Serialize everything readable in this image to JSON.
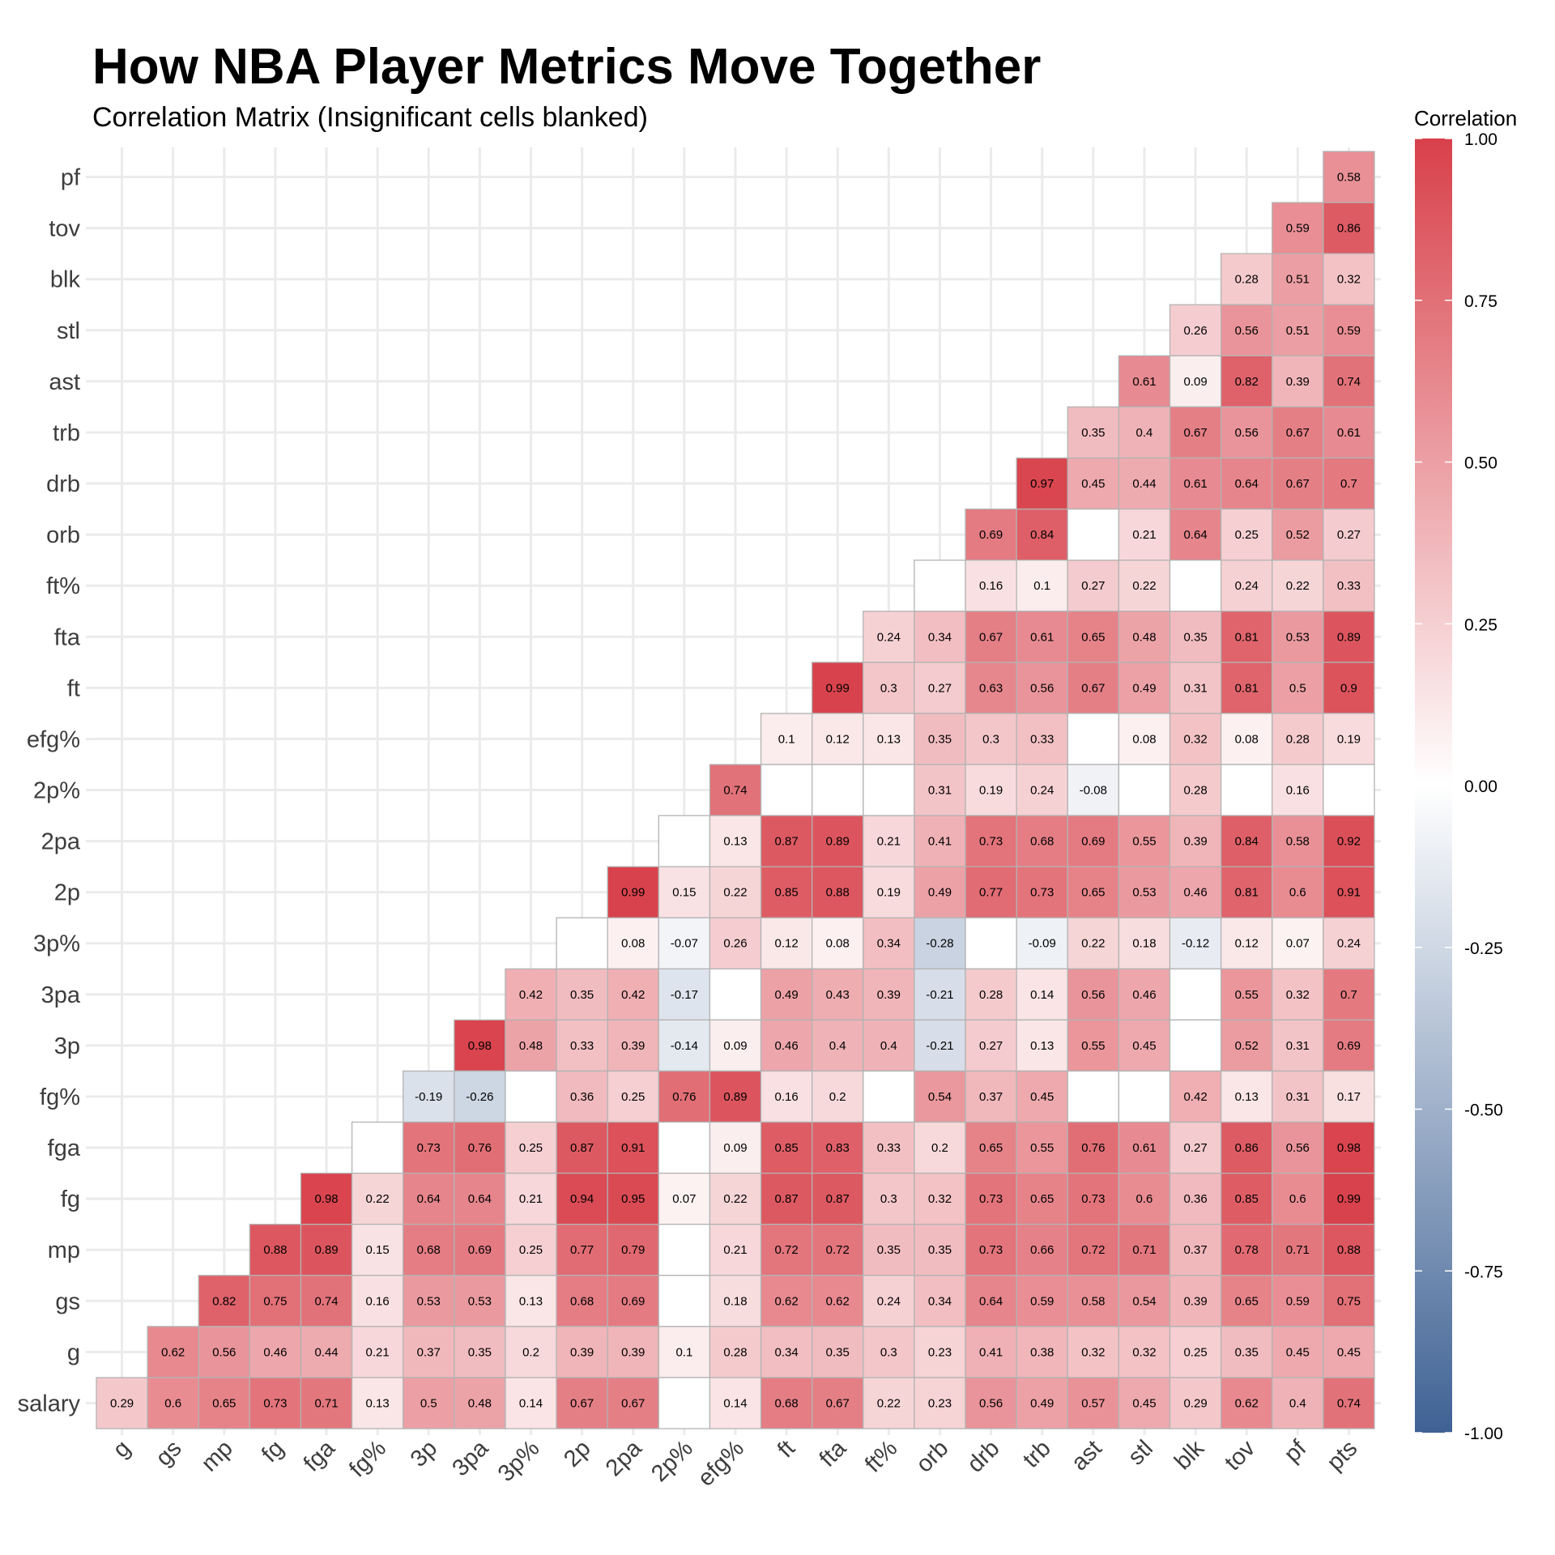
{
  "chart_data": {
    "type": "heatmap",
    "title": "How NBA Player Metrics Move Together",
    "subtitle": "Correlation Matrix (Insignificant cells blanked)",
    "x_categories": [
      "g",
      "gs",
      "mp",
      "fg",
      "fga",
      "fg%",
      "3p",
      "3pa",
      "3p%",
      "2p",
      "2pa",
      "2p%",
      "efg%",
      "ft",
      "fta",
      "ft%",
      "orb",
      "drb",
      "trb",
      "ast",
      "stl",
      "blk",
      "tov",
      "pf",
      "pts"
    ],
    "y_categories_top_to_bottom": [
      "pf",
      "tov",
      "blk",
      "stl",
      "ast",
      "trb",
      "drb",
      "orb",
      "ft%",
      "fta",
      "ft",
      "efg%",
      "2p%",
      "2pa",
      "2p",
      "3p%",
      "3pa",
      "3p",
      "fg%",
      "fga",
      "fg",
      "mp",
      "gs",
      "g",
      "salary"
    ],
    "note": "Each row lists values for columns from its first shown column through pts; null = insignificant (blank cell).",
    "rows": [
      {
        "y": "pf",
        "values": [
          0.58
        ]
      },
      {
        "y": "tov",
        "values": [
          0.59,
          0.86
        ]
      },
      {
        "y": "blk",
        "values": [
          0.28,
          0.51,
          0.32
        ]
      },
      {
        "y": "stl",
        "values": [
          0.26,
          0.56,
          0.51,
          0.59
        ]
      },
      {
        "y": "ast",
        "values": [
          0.61,
          0.09,
          0.82,
          0.39,
          0.74
        ]
      },
      {
        "y": "trb",
        "values": [
          0.35,
          0.4,
          0.67,
          0.56,
          0.67,
          0.61
        ]
      },
      {
        "y": "drb",
        "values": [
          0.97,
          0.45,
          0.44,
          0.61,
          0.64,
          0.67,
          0.7
        ]
      },
      {
        "y": "orb",
        "values": [
          0.69,
          0.84,
          null,
          0.21,
          0.64,
          0.25,
          0.52,
          0.27
        ]
      },
      {
        "y": "ft%",
        "values": [
          null,
          0.16,
          0.1,
          0.27,
          0.22,
          null,
          0.24,
          0.22,
          0.33
        ]
      },
      {
        "y": "fta",
        "values": [
          0.24,
          0.34,
          0.67,
          0.61,
          0.65,
          0.48,
          0.35,
          0.81,
          0.53,
          0.89
        ]
      },
      {
        "y": "ft",
        "values": [
          0.99,
          0.3,
          0.27,
          0.63,
          0.56,
          0.67,
          0.49,
          0.31,
          0.81,
          0.5,
          0.9
        ]
      },
      {
        "y": "efg%",
        "values": [
          0.1,
          0.12,
          0.13,
          0.35,
          0.3,
          0.33,
          null,
          0.08,
          0.32,
          0.08,
          0.28,
          0.19
        ]
      },
      {
        "y": "2p%",
        "values": [
          0.74,
          null,
          null,
          null,
          0.31,
          0.19,
          0.24,
          -0.08,
          null,
          0.28,
          null,
          0.16,
          null
        ]
      },
      {
        "y": "2pa",
        "values": [
          null,
          0.13,
          0.87,
          0.89,
          0.21,
          0.41,
          0.73,
          0.68,
          0.69,
          0.55,
          0.39,
          0.84,
          0.58,
          0.92
        ]
      },
      {
        "y": "2p",
        "values": [
          0.99,
          0.15,
          0.22,
          0.85,
          0.88,
          0.19,
          0.49,
          0.77,
          0.73,
          0.65,
          0.53,
          0.46,
          0.81,
          0.6,
          0.91
        ]
      },
      {
        "y": "3p%",
        "values": [
          null,
          0.08,
          -0.07,
          0.26,
          0.12,
          0.08,
          0.34,
          -0.28,
          null,
          -0.09,
          0.22,
          0.18,
          -0.12,
          0.12,
          0.07,
          0.24
        ]
      },
      {
        "y": "3pa",
        "values": [
          0.42,
          0.35,
          0.42,
          -0.17,
          null,
          0.49,
          0.43,
          0.39,
          -0.21,
          0.28,
          0.14,
          0.56,
          0.46,
          null,
          0.55,
          0.32,
          0.7
        ]
      },
      {
        "y": "3p",
        "values": [
          0.98,
          0.48,
          0.33,
          0.39,
          -0.14,
          0.09,
          0.46,
          0.4,
          0.4,
          -0.21,
          0.27,
          0.13,
          0.55,
          0.45,
          null,
          0.52,
          0.31,
          0.69
        ]
      },
      {
        "y": "fg%",
        "values": [
          -0.19,
          -0.26,
          null,
          0.36,
          0.25,
          0.76,
          0.89,
          0.16,
          0.2,
          null,
          0.54,
          0.37,
          0.45,
          null,
          null,
          0.42,
          0.13,
          0.31,
          0.17
        ]
      },
      {
        "y": "fga",
        "values": [
          null,
          0.73,
          0.76,
          0.25,
          0.87,
          0.91,
          null,
          0.09,
          0.85,
          0.83,
          0.33,
          0.2,
          0.65,
          0.55,
          0.76,
          0.61,
          0.27,
          0.86,
          0.56,
          0.98
        ]
      },
      {
        "y": "fg",
        "values": [
          0.98,
          0.22,
          0.64,
          0.64,
          0.21,
          0.94,
          0.95,
          0.07,
          0.22,
          0.87,
          0.87,
          0.3,
          0.32,
          0.73,
          0.65,
          0.73,
          0.6,
          0.36,
          0.85,
          0.6,
          0.99
        ]
      },
      {
        "y": "mp",
        "values": [
          0.88,
          0.89,
          0.15,
          0.68,
          0.69,
          0.25,
          0.77,
          0.79,
          null,
          0.21,
          0.72,
          0.72,
          0.35,
          0.35,
          0.73,
          0.66,
          0.72,
          0.71,
          0.37,
          0.78,
          0.71,
          0.88
        ]
      },
      {
        "y": "gs",
        "values": [
          0.82,
          0.75,
          0.74,
          0.16,
          0.53,
          0.53,
          0.13,
          0.68,
          0.69,
          null,
          0.18,
          0.62,
          0.62,
          0.24,
          0.34,
          0.64,
          0.59,
          0.58,
          0.54,
          0.39,
          0.65,
          0.59,
          0.75
        ]
      },
      {
        "y": "g",
        "values": [
          0.62,
          0.56,
          0.46,
          0.44,
          0.21,
          0.37,
          0.35,
          0.2,
          0.39,
          0.39,
          0.1,
          0.28,
          0.34,
          0.35,
          0.3,
          0.23,
          0.41,
          0.38,
          0.32,
          0.32,
          0.25,
          0.35,
          0.45,
          0.45
        ]
      },
      {
        "y": "salary",
        "values": [
          0.29,
          0.6,
          0.65,
          0.73,
          0.71,
          0.13,
          0.5,
          0.48,
          0.14,
          0.67,
          0.67,
          null,
          0.14,
          0.68,
          0.67,
          0.22,
          0.23,
          0.56,
          0.49,
          0.57,
          0.45,
          0.29,
          0.62,
          0.4,
          0.74
        ]
      }
    ],
    "legend": {
      "title": "Correlation",
      "position": "right",
      "range": [
        -1,
        1
      ],
      "ticks": [
        "1.00",
        "0.75",
        "0.50",
        "0.25",
        "0.00",
        "-0.25",
        "-0.50",
        "-0.75",
        "-1.00"
      ],
      "colors": {
        "low": "#3f6294",
        "mid": "#ffffff",
        "high": "#d8404a"
      }
    },
    "grid": true
  }
}
